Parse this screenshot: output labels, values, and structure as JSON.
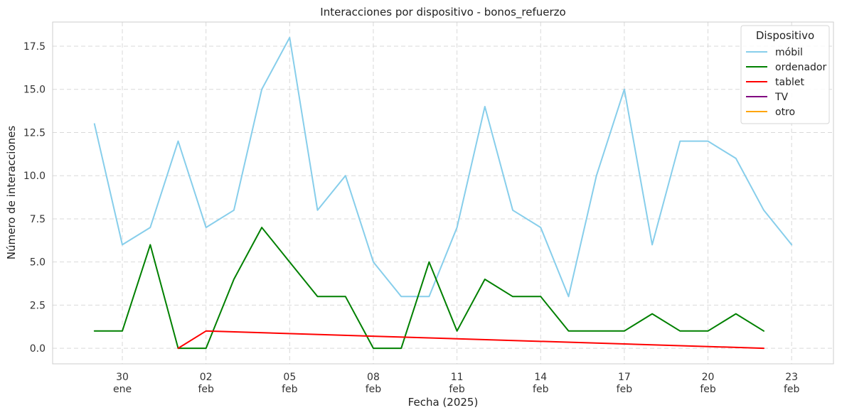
{
  "chart_data": {
    "type": "line",
    "title": "Interacciones por dispositivo - bonos_refuerzo",
    "xlabel": "Fecha (2025)",
    "ylabel": "Número de interacciones",
    "ylim": [
      -0.9,
      18.9
    ],
    "xlim": [
      "2025-01-27T12:00",
      "2025-02-24T12:00"
    ],
    "yticks": [
      0.0,
      2.5,
      5.0,
      7.5,
      10.0,
      12.5,
      15.0,
      17.5
    ],
    "ytick_labels": [
      "0.0",
      "2.5",
      "5.0",
      "7.5",
      "10.0",
      "12.5",
      "15.0",
      "17.5"
    ],
    "xticks": [
      {
        "date": "2025-01-30",
        "day": "30",
        "month": "ene"
      },
      {
        "date": "2025-02-02",
        "day": "02",
        "month": "feb"
      },
      {
        "date": "2025-02-05",
        "day": "05",
        "month": "feb"
      },
      {
        "date": "2025-02-08",
        "day": "08",
        "month": "feb"
      },
      {
        "date": "2025-02-11",
        "day": "11",
        "month": "feb"
      },
      {
        "date": "2025-02-14",
        "day": "14",
        "month": "feb"
      },
      {
        "date": "2025-02-17",
        "day": "17",
        "month": "feb"
      },
      {
        "date": "2025-02-20",
        "day": "20",
        "month": "feb"
      },
      {
        "date": "2025-02-23",
        "day": "23",
        "month": "feb"
      }
    ],
    "grid": true,
    "legend": {
      "title": "Dispositivo",
      "position": "top-right"
    },
    "series": [
      {
        "name": "móbil",
        "color": "#87CEEB",
        "points": [
          [
            "2025-01-29",
            13
          ],
          [
            "2025-01-30",
            6
          ],
          [
            "2025-01-31",
            7
          ],
          [
            "2025-02-01",
            12
          ],
          [
            "2025-02-02",
            7
          ],
          [
            "2025-02-03",
            8
          ],
          [
            "2025-02-04",
            15
          ],
          [
            "2025-02-05",
            18
          ],
          [
            "2025-02-06",
            8
          ],
          [
            "2025-02-07",
            10
          ],
          [
            "2025-02-08",
            5
          ],
          [
            "2025-02-09",
            3
          ],
          [
            "2025-02-10",
            3
          ],
          [
            "2025-02-11",
            7
          ],
          [
            "2025-02-12",
            14
          ],
          [
            "2025-02-13",
            8
          ],
          [
            "2025-02-14",
            7
          ],
          [
            "2025-02-15",
            3
          ],
          [
            "2025-02-16",
            10
          ],
          [
            "2025-02-17",
            15
          ],
          [
            "2025-02-18",
            6
          ],
          [
            "2025-02-19",
            12
          ],
          [
            "2025-02-20",
            12
          ],
          [
            "2025-02-21",
            11
          ],
          [
            "2025-02-22",
            8
          ],
          [
            "2025-02-23",
            6
          ]
        ]
      },
      {
        "name": "ordenador",
        "color": "#008000",
        "points": [
          [
            "2025-01-29",
            1
          ],
          [
            "2025-01-30",
            1
          ],
          [
            "2025-01-31",
            6
          ],
          [
            "2025-02-01",
            0
          ],
          [
            "2025-02-02",
            0
          ],
          [
            "2025-02-03",
            4
          ],
          [
            "2025-02-04",
            7
          ],
          [
            "2025-02-05",
            5
          ],
          [
            "2025-02-06",
            3
          ],
          [
            "2025-02-07",
            3
          ],
          [
            "2025-02-08",
            0
          ],
          [
            "2025-02-09",
            0
          ],
          [
            "2025-02-10",
            5
          ],
          [
            "2025-02-11",
            1
          ],
          [
            "2025-02-12",
            4
          ],
          [
            "2025-02-13",
            3
          ],
          [
            "2025-02-14",
            3
          ],
          [
            "2025-02-15",
            1
          ],
          [
            "2025-02-16",
            1
          ],
          [
            "2025-02-17",
            1
          ],
          [
            "2025-02-18",
            2
          ],
          [
            "2025-02-19",
            1
          ],
          [
            "2025-02-20",
            1
          ],
          [
            "2025-02-21",
            2
          ],
          [
            "2025-02-22",
            1
          ]
        ]
      },
      {
        "name": "tablet",
        "color": "#FF0000",
        "points": [
          [
            "2025-02-01",
            0
          ],
          [
            "2025-02-02",
            1
          ],
          [
            "2025-02-22",
            0
          ]
        ]
      },
      {
        "name": "TV",
        "color": "#800080",
        "points": []
      },
      {
        "name": "otro",
        "color": "#FFA500",
        "points": []
      }
    ]
  }
}
